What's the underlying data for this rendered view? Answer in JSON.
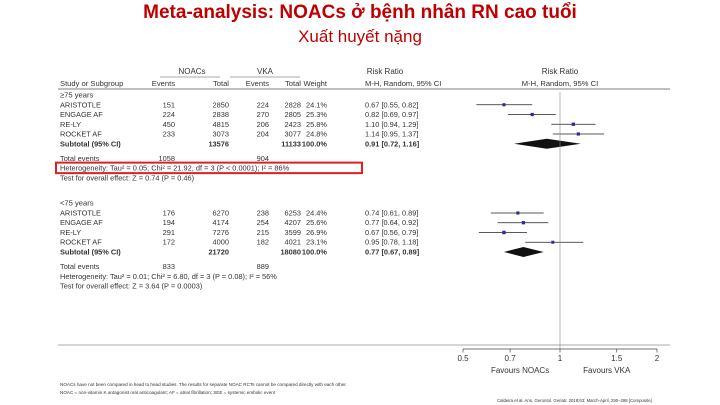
{
  "slide": {
    "title": "Meta-analysis: NOACs ở bệnh nhân RN cao tuổi",
    "subtitle": "Xuất huyết nặng"
  },
  "chart_data": {
    "type": "forest",
    "headers": {
      "noac_group": "NOACs",
      "vka_group": "VKA",
      "rr_group": "Risk Ratio",
      "rr_group_right": "Risk Ratio",
      "study": "Study or Subgroup",
      "events": "Events",
      "total": "Total",
      "events2": "Events",
      "total2": "Total",
      "weight": "Weight",
      "method": "M-H, Random, 95% CI",
      "method_right": "M-H, Random, 95% CI"
    },
    "axis": {
      "ticks": [
        0.5,
        0.7,
        1,
        1.5,
        2
      ],
      "tick_labels": [
        "0.5",
        "0.7",
        "1",
        "1.5",
        "2"
      ],
      "scale": "log",
      "left_label": "Favours NOACs",
      "right_label": "Favours VKA",
      "null_value": 1
    },
    "subgroups": [
      {
        "label": "≥75 years",
        "studies": [
          {
            "name": "ARISTOTLE",
            "e1": "151",
            "n1": "2850",
            "e2": "224",
            "n2": "2828",
            "weight": "24.1%",
            "ci_text": "0.67 [0.55, 0.82]",
            "rr": 0.67,
            "lo": 0.55,
            "hi": 0.82
          },
          {
            "name": "ENGAGE AF",
            "e1": "224",
            "n1": "2838",
            "e2": "270",
            "n2": "2805",
            "weight": "25.3%",
            "ci_text": "0.82 [0.69, 0.97]",
            "rr": 0.82,
            "lo": 0.69,
            "hi": 0.97
          },
          {
            "name": "RE-LY",
            "e1": "450",
            "n1": "4815",
            "e2": "206",
            "n2": "2423",
            "weight": "25.8%",
            "ci_text": "1.10 [0.94, 1.29]",
            "rr": 1.1,
            "lo": 0.94,
            "hi": 1.29
          },
          {
            "name": "ROCKET AF",
            "e1": "233",
            "n1": "3073",
            "e2": "204",
            "n2": "3077",
            "weight": "24.8%",
            "ci_text": "1.14 [0.95, 1.37]",
            "rr": 1.14,
            "lo": 0.95,
            "hi": 1.37
          }
        ],
        "subtotal": {
          "label": "Subtotal (95% CI)",
          "n1": "13576",
          "n2": "11133",
          "weight": "100.0%",
          "ci_text": "0.91 [0.72, 1.16]",
          "rr": 0.91,
          "lo": 0.72,
          "hi": 1.16
        },
        "total_events": {
          "label": "Total events",
          "e1": "1058",
          "e2": "904"
        },
        "heterogeneity": "Heterogeneity: Tau² = 0.05; Chi² = 21.92, df = 3 (P < 0.0001); I² = 86%",
        "heterogeneity_highlight": true,
        "overall_test": "Test for overall effect: Z = 0.74 (P = 0.46)"
      },
      {
        "label": "<75 years",
        "studies": [
          {
            "name": "ARISTOTLE",
            "e1": "176",
            "n1": "6270",
            "e2": "238",
            "n2": "6253",
            "weight": "24.4%",
            "ci_text": "0.74 [0.61, 0.89]",
            "rr": 0.74,
            "lo": 0.61,
            "hi": 0.89
          },
          {
            "name": "ENGAGE AF",
            "e1": "194",
            "n1": "4174",
            "e2": "254",
            "n2": "4207",
            "weight": "25.6%",
            "ci_text": "0.77 [0.64, 0.92]",
            "rr": 0.77,
            "lo": 0.64,
            "hi": 0.92
          },
          {
            "name": "RE-LY",
            "e1": "291",
            "n1": "7276",
            "e2": "215",
            "n2": "3599",
            "weight": "26.9%",
            "ci_text": "0.67 [0.56, 0.79]",
            "rr": 0.67,
            "lo": 0.56,
            "hi": 0.79
          },
          {
            "name": "ROCKET AF",
            "e1": "172",
            "n1": "4000",
            "e2": "182",
            "n2": "4021",
            "weight": "23.1%",
            "ci_text": "0.95 [0.78, 1.18]",
            "rr": 0.95,
            "lo": 0.78,
            "hi": 1.18
          }
        ],
        "subtotal": {
          "label": "Subtotal (95% CI)",
          "n1": "21720",
          "n2": "18080",
          "weight": "100.0%",
          "ci_text": "0.77 [0.67, 0.89]",
          "rr": 0.77,
          "lo": 0.67,
          "hi": 0.89
        },
        "total_events": {
          "label": "Total events",
          "e1": "833",
          "e2": "889"
        },
        "heterogeneity": "Heterogeneity: Tau² = 0.01; Chi² = 6.80, df = 3 (P = 0.08); I² = 56%",
        "heterogeneity_highlight": false,
        "overall_test": "Test for overall effect: Z = 3.64 (P = 0.0003)"
      }
    ],
    "colors": {
      "square": "#2b2b9a",
      "diamond": "#111111",
      "highlight": "#e02020",
      "rule": "#555555",
      "text": "#333333",
      "title": "#c00000"
    }
  },
  "footnotes": {
    "line1": "NOACs have not been compared in head to head studies. The results for separate NOAC RCTs cannot be compared directly with each other.",
    "line2": "NOAC = non-vitamin K antagonist oral anticoagulant; AF = atrial fibrillation; SEE = systemic embolic event",
    "source": "Caldeira et al. Ann. Gerontol. Geriatr. 2018;63: March-April, 290–298 [Composite]"
  }
}
